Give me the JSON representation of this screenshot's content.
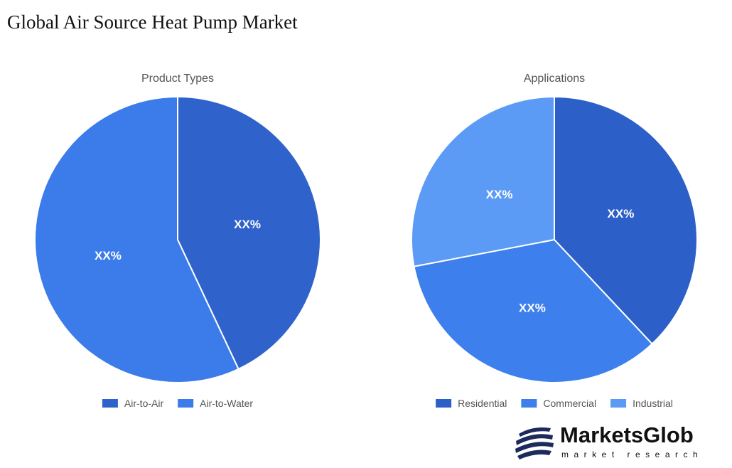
{
  "title": "Global Air Source Heat Pump Market",
  "chart_data": [
    {
      "type": "pie",
      "title": "Product Types",
      "categories": [
        "Air-to-Air",
        "Air-to-Water"
      ],
      "values": [
        43,
        57
      ],
      "value_labels": [
        "XX%",
        "XX%"
      ],
      "colors": [
        "#2f63cb",
        "#3b7cea"
      ]
    },
    {
      "type": "pie",
      "title": "Applications",
      "categories": [
        "Residential",
        "Commercial",
        "Industrial"
      ],
      "values": [
        38,
        34,
        28
      ],
      "value_labels": [
        "XX%",
        "XX%",
        "XX%"
      ],
      "colors": [
        "#2c5fc8",
        "#3d7fec",
        "#5b9af5"
      ]
    }
  ],
  "logo": {
    "name": "MarketsGlob",
    "tagline": "market research"
  }
}
